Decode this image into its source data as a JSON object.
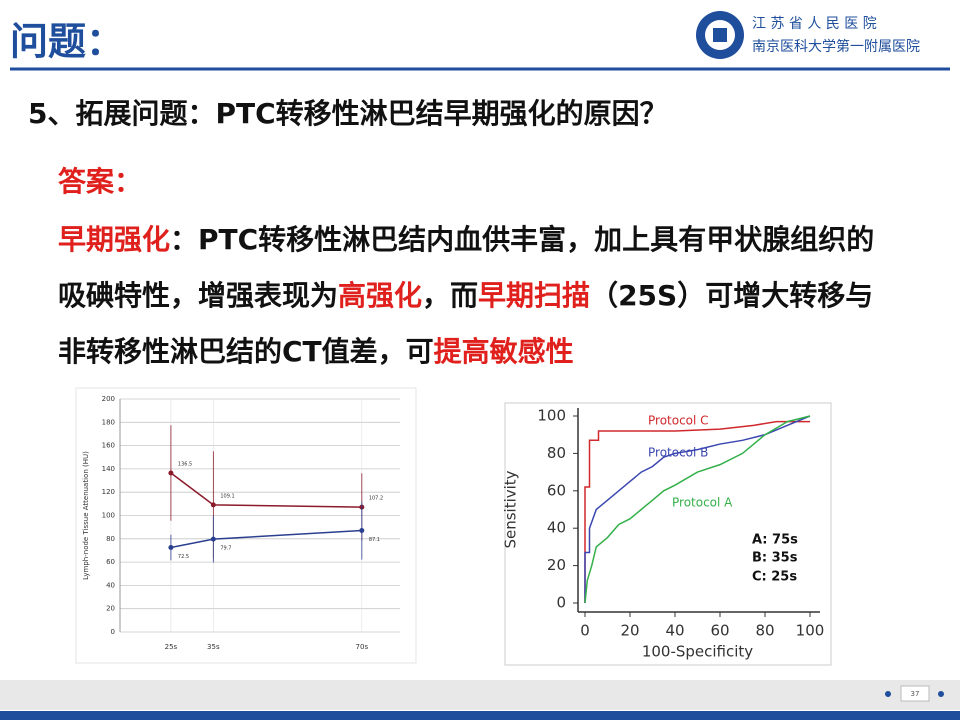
{
  "header": {
    "title": "问题：",
    "hospital_line1": "江 苏 省 人 民 医 院",
    "hospital_line2": "南京医科大学第一附属医院"
  },
  "question": "5、拓展问题：PTC转移性淋巴结早期强化的原因？",
  "answer": {
    "label": "答案：",
    "runs": [
      {
        "text": "早期强化",
        "color": "#e0201c"
      },
      {
        "text": "：PTC转移性淋巴结内血供丰富，加上具有甲状腺组织的吸碘特性，增强表现为",
        "color": "#111111"
      },
      {
        "text": "高强化",
        "color": "#e0201c"
      },
      {
        "text": "，而",
        "color": "#111111"
      },
      {
        "text": "早期扫描",
        "color": "#e0201c"
      },
      {
        "text": "（25S）可增大转移与非转移性淋巴结的CT值差，可",
        "color": "#111111"
      },
      {
        "text": "提高敏感性",
        "color": "#e0201c"
      }
    ]
  },
  "page_number": "37",
  "chart_data": [
    {
      "type": "line",
      "ylabel": "Lymph-node Tissue Attenuation (HU)",
      "x": [
        25,
        35,
        70
      ],
      "xlim": [
        13,
        79
      ],
      "xticks": [
        {
          "value": 25,
          "label": "25s"
        },
        {
          "value": 35,
          "label": "35s"
        },
        {
          "value": 70,
          "label": "70s"
        }
      ],
      "ylim": [
        0,
        200
      ],
      "yticks": [
        0,
        20,
        40,
        60,
        80,
        100,
        120,
        140,
        160,
        180,
        200
      ],
      "grid": true,
      "series": [
        {
          "color": "#8b1a2b",
          "values": [
            136.5,
            109.1,
            107.2
          ],
          "errors": [
            41,
            46,
            29
          ]
        },
        {
          "color": "#2b3f8f",
          "values": [
            72.5,
            79.7,
            87.1
          ],
          "errors": [
            11,
            20,
            25
          ]
        }
      ]
    },
    {
      "type": "line",
      "xlabel": "100-Specificity",
      "ylabel": "Sensitivity",
      "xlim": [
        0,
        100
      ],
      "xticks": [
        0,
        20,
        40,
        60,
        80,
        100
      ],
      "ylim": [
        0,
        100
      ],
      "yticks": [
        0,
        20,
        40,
        60,
        80,
        100
      ],
      "grid": false,
      "series": [
        {
          "name": "Protocol C",
          "color": "#d0282c",
          "x": [
            0,
            0,
            2,
            2,
            6,
            6,
            40,
            60,
            75,
            85,
            100
          ],
          "values": [
            0,
            62,
            62,
            87,
            87,
            92,
            92,
            93,
            95,
            97,
            97
          ]
        },
        {
          "name": "Protocol B",
          "color": "#3b47b0",
          "x": [
            0,
            0,
            2,
            2,
            5,
            10,
            15,
            20,
            25,
            30,
            35,
            40,
            50,
            60,
            70,
            80,
            90,
            100
          ],
          "values": [
            0,
            27,
            27,
            40,
            50,
            55,
            60,
            65,
            70,
            73,
            78,
            80,
            82,
            85,
            87,
            90,
            95,
            100
          ]
        },
        {
          "name": "Protocol A",
          "color": "#34b04a",
          "x": [
            0,
            1,
            3,
            5,
            10,
            15,
            20,
            25,
            30,
            35,
            40,
            50,
            60,
            70,
            80,
            90,
            100
          ],
          "values": [
            0,
            12,
            20,
            30,
            35,
            42,
            45,
            50,
            55,
            60,
            63,
            70,
            74,
            80,
            90,
            97,
            100
          ]
        }
      ],
      "annotations": [
        "A: 75s",
        "B: 35s",
        "C: 25s"
      ]
    }
  ]
}
